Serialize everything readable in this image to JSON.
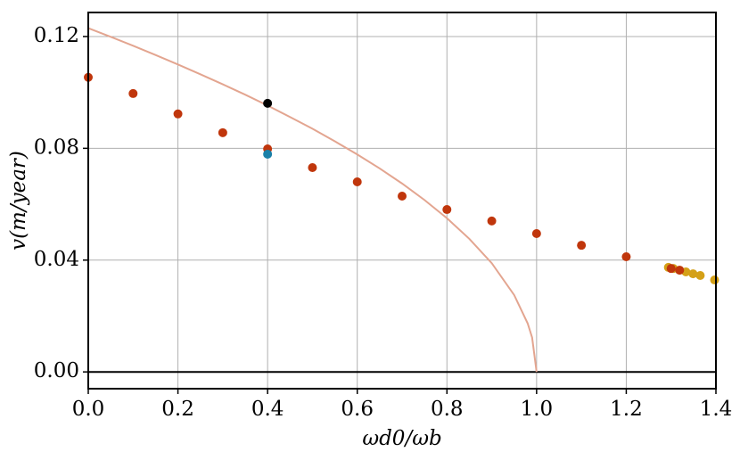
{
  "chart_data": {
    "type": "scatter",
    "xlabel": "ωd0/ωb",
    "ylabel": "v(m/year)",
    "xlim": [
      0,
      1.4
    ],
    "ylim": [
      -0.006,
      0.1286
    ],
    "xticks": [
      {
        "value": 0,
        "label": "0.0"
      },
      0.2,
      0.4,
      0.6,
      0.8,
      {
        "value": 1,
        "label": "1.0"
      },
      1.2,
      1.4
    ],
    "yticks": [
      {
        "value": 0,
        "label": "0.00"
      },
      {
        "value": 0.04,
        "label": "0.04"
      },
      {
        "value": 0.08,
        "label": "0.08"
      },
      {
        "value": 0.12,
        "label": "0.12"
      }
    ],
    "grid": true,
    "series": [
      {
        "style": "line",
        "color": "#e3a590",
        "x": [
          0,
          0.05,
          0.1,
          0.15,
          0.2,
          0.25,
          0.3,
          0.35,
          0.4,
          0.45,
          0.5,
          0.55,
          0.6,
          0.65,
          0.7,
          0.75,
          0.8,
          0.85,
          0.9,
          0.95,
          0.98,
          0.99,
          1.0
        ],
        "values": [
          0.123,
          0.1199,
          0.1167,
          0.1134,
          0.11,
          0.1065,
          0.1029,
          0.0992,
          0.0953,
          0.0912,
          0.087,
          0.0825,
          0.0778,
          0.0728,
          0.0674,
          0.0615,
          0.055,
          0.0476,
          0.0389,
          0.0275,
          0.0174,
          0.0123,
          0
        ]
      },
      {
        "style": "points",
        "color": "#d4a017",
        "x": [
          1.294,
          1.305,
          1.319,
          1.333,
          1.349,
          1.365,
          1.397
        ],
        "values": [
          0.0374,
          0.037,
          0.0364,
          0.0358,
          0.0351,
          0.0345,
          0.0329
        ]
      },
      {
        "style": "points",
        "color": "#c0360c",
        "x": [
          0,
          0.1,
          0.2,
          0.3,
          0.4,
          0.5,
          0.6,
          0.7,
          0.8,
          0.9,
          1.0,
          1.1,
          1.2,
          1.3,
          1.319
        ],
        "values": [
          0.1054,
          0.0996,
          0.0923,
          0.0856,
          0.0798,
          0.0731,
          0.068,
          0.0629,
          0.0581,
          0.054,
          0.0495,
          0.0453,
          0.0412,
          0.037,
          0.0364
        ]
      },
      {
        "style": "points",
        "color": "#000000",
        "x": [
          0.4
        ],
        "values": [
          0.0961
        ]
      },
      {
        "style": "points",
        "color": "#1a80a8",
        "x": [
          0.4
        ],
        "values": [
          0.0779
        ]
      }
    ]
  }
}
